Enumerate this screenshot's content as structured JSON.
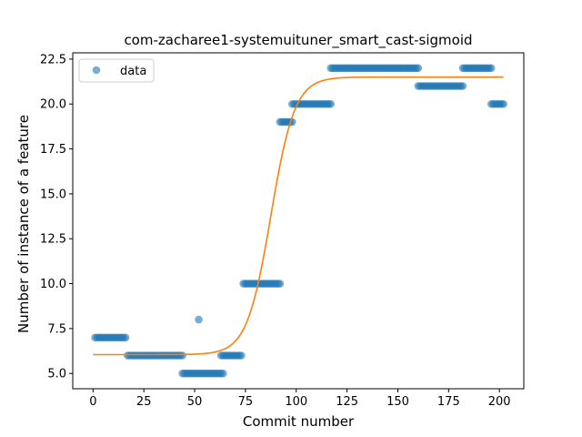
{
  "chart_data": {
    "type": "scatter",
    "title": "com-zacharee1-systemuituner_smart_cast-sigmoid",
    "xlabel": "Commit number",
    "ylabel": "Number of instance of a feature",
    "xlim": [
      -10,
      212
    ],
    "ylim": [
      4.15,
      22.85
    ],
    "xticks": [
      0,
      25,
      50,
      75,
      100,
      125,
      150,
      175,
      200
    ],
    "yticks": [
      5.0,
      7.5,
      10.0,
      12.5,
      15.0,
      17.5,
      20.0,
      22.5
    ],
    "ytick_labels": [
      "5.0",
      "7.5",
      "10.0",
      "12.5",
      "15.0",
      "17.5",
      "20.0",
      "22.5"
    ],
    "grid": false,
    "legend_position": "top-left",
    "colors": {
      "data": "#1f77b4",
      "fit": "#ff7f0e"
    },
    "series": [
      {
        "name": "data",
        "kind": "scatter",
        "segments": [
          {
            "x_from": 1,
            "x_to": 16,
            "y": 7
          },
          {
            "x_from": 17,
            "x_to": 44,
            "y": 6
          },
          {
            "x_from": 44,
            "x_to": 64,
            "y": 5
          },
          {
            "x_from": 52,
            "x_to": 52,
            "y": 8
          },
          {
            "x_from": 63,
            "x_to": 73,
            "y": 6
          },
          {
            "x_from": 74,
            "x_to": 92,
            "y": 10
          },
          {
            "x_from": 92,
            "x_to": 98,
            "y": 19
          },
          {
            "x_from": 98,
            "x_to": 117,
            "y": 20
          },
          {
            "x_from": 117,
            "x_to": 160,
            "y": 22
          },
          {
            "x_from": 160,
            "x_to": 182,
            "y": 21
          },
          {
            "x_from": 182,
            "x_to": 196,
            "y": 22
          },
          {
            "x_from": 196,
            "x_to": 202,
            "y": 20
          }
        ]
      },
      {
        "kind": "line",
        "function": "sigmoid",
        "params": {
          "L": 15.45,
          "x0": 87.5,
          "k": 0.17,
          "b": 6.05
        },
        "x_range": [
          0,
          202
        ]
      }
    ]
  }
}
